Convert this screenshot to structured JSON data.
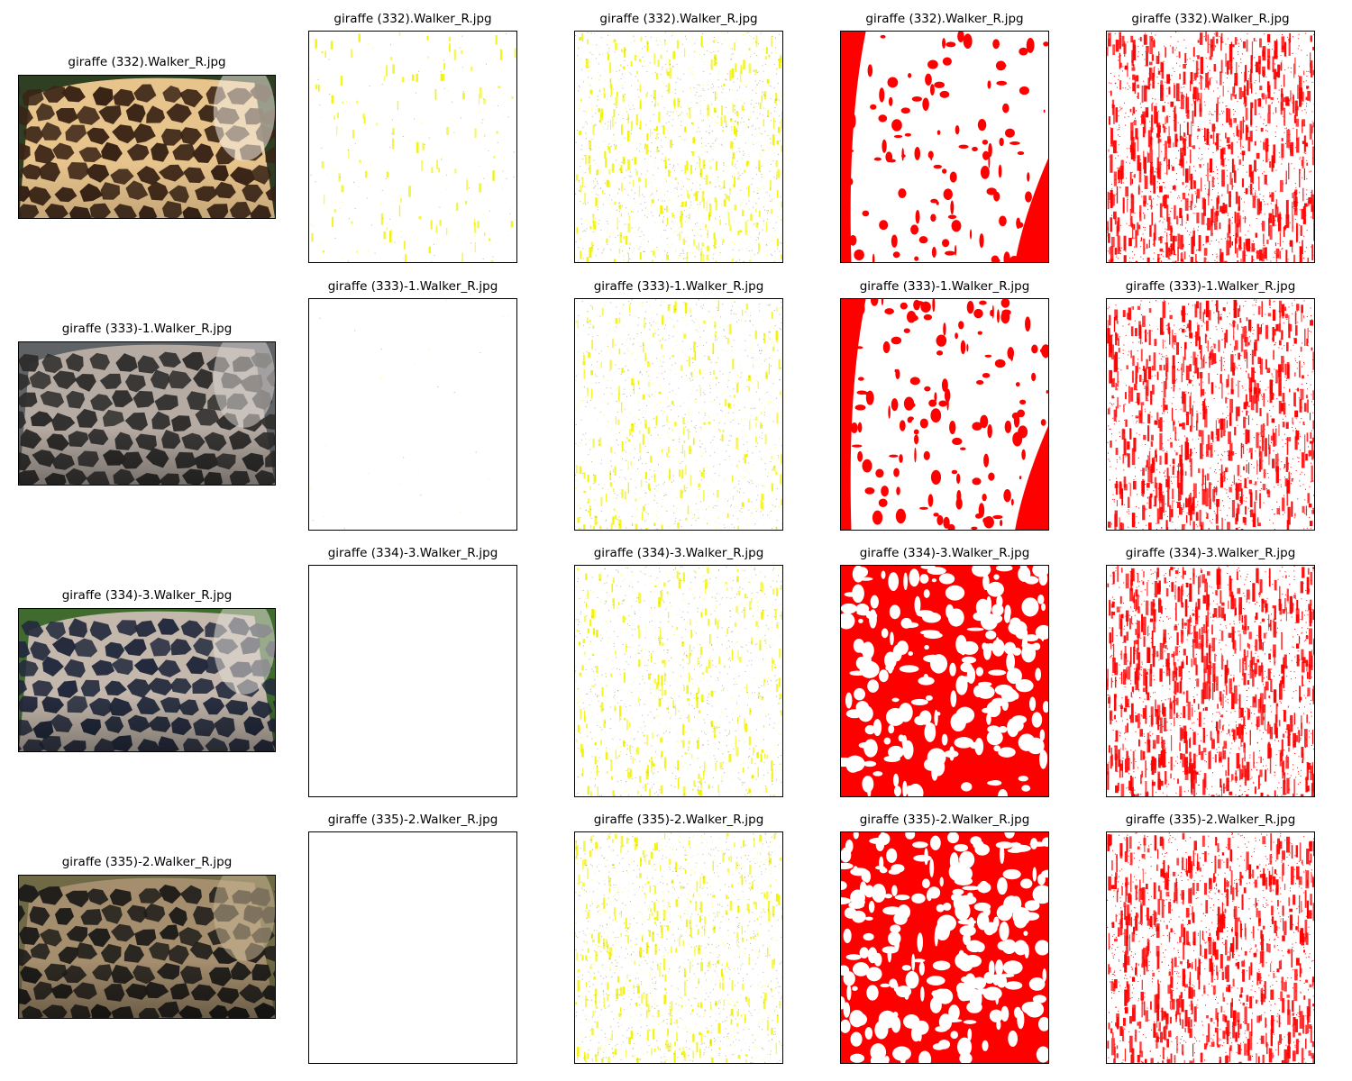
{
  "colors": {
    "yellow": "#f2f200",
    "red": "#ff0000",
    "frame": "#000000"
  },
  "rows": [
    {
      "title": "giraffe (332).Walker_R.jpg",
      "photo": {
        "icon": "giraffe-hide-photo-icon",
        "tone": "light",
        "bg": "#2e3f22",
        "patch": "#3a2416",
        "net": "#e8c48d",
        "blowout": "#f2ece4"
      },
      "panels": [
        {
          "icon": "sparse-yellow-mask-icon",
          "density": 0.12,
          "noise": 0.05
        },
        {
          "icon": "yellow-speckle-mask-icon",
          "density": 0.35,
          "noise": 0.55
        },
        {
          "icon": "red-blob-mask-icon",
          "density": 0.22
        },
        {
          "icon": "red-streak-mask-icon",
          "density": 0.45
        }
      ]
    },
    {
      "title": "giraffe (333)-1.Walker_R.jpg",
      "photo": {
        "icon": "giraffe-hide-photo-icon",
        "tone": "dark",
        "bg": "#5f6366",
        "patch": "#2e2d2c",
        "net": "#b6aba3",
        "blowout": "#d8d4cf"
      },
      "panels": [
        {
          "icon": "empty-mask-icon",
          "density": 0.0,
          "noise": 0.01
        },
        {
          "icon": "yellow-speckle-mask-icon",
          "density": 0.25,
          "noise": 0.45
        },
        {
          "icon": "red-blob-mask-icon",
          "density": 0.28
        },
        {
          "icon": "red-streak-mask-icon",
          "density": 0.4
        }
      ]
    },
    {
      "title": "giraffe (334)-3.Walker_R.jpg",
      "photo": {
        "icon": "giraffe-hide-photo-icon",
        "tone": "dark",
        "bg": "#3f6b2f",
        "patch": "#232a3d",
        "net": "#c4b8ad",
        "blowout": "#e3ded7"
      },
      "panels": [
        {
          "icon": "empty-mask-icon",
          "density": 0.0,
          "noise": 0.0
        },
        {
          "icon": "yellow-speckle-mask-icon",
          "density": 0.3,
          "noise": 0.45
        },
        {
          "icon": "red-blob-mask-icon",
          "density": 0.65
        },
        {
          "icon": "red-streak-mask-icon",
          "density": 0.45
        }
      ]
    },
    {
      "title": "giraffe (335)-2.Walker_R.jpg",
      "photo": {
        "icon": "giraffe-hide-photo-icon",
        "tone": "dark",
        "bg": "#6f6a45",
        "patch": "#1f1d1a",
        "net": "#a58e6e",
        "blowout": "#c9b493"
      },
      "panels": [
        {
          "icon": "empty-mask-icon",
          "density": 0.0,
          "noise": 0.0
        },
        {
          "icon": "yellow-speckle-mask-icon",
          "density": 0.35,
          "noise": 0.6
        },
        {
          "icon": "red-blob-mask-icon",
          "density": 0.6
        },
        {
          "icon": "red-streak-mask-icon",
          "density": 0.4
        }
      ]
    }
  ]
}
